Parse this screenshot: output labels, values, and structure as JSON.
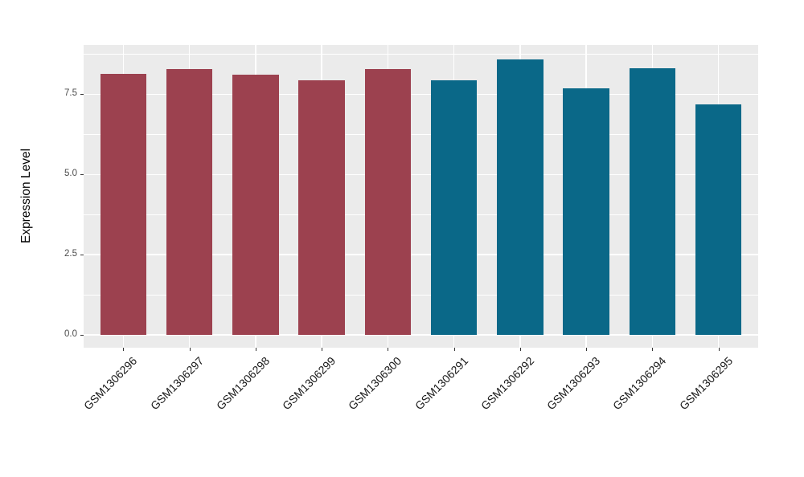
{
  "figure": {
    "background_color": "#FFFFFF",
    "panel_background_color": "#EBEBEB",
    "gridline_color": "#FFFFFF",
    "group_colors": {
      "left_group": "#9C414F",
      "right_group": "#0A6888"
    }
  },
  "chart_data": {
    "type": "bar",
    "title": "",
    "xlabel": "",
    "ylabel": "Expression Level",
    "categories": [
      "GSM1306296",
      "GSM1306297",
      "GSM1306298",
      "GSM1306299",
      "GSM1306300",
      "GSM1306291",
      "GSM1306292",
      "GSM1306293",
      "GSM1306294",
      "GSM1306295"
    ],
    "values": [
      8.14,
      8.29,
      8.1,
      7.94,
      8.29,
      7.94,
      8.59,
      7.68,
      8.31,
      7.18
    ],
    "bar_colors": [
      "#9C414F",
      "#9C414F",
      "#9C414F",
      "#9C414F",
      "#9C414F",
      "#0A6888",
      "#0A6888",
      "#0A6888",
      "#0A6888",
      "#0A6888"
    ],
    "y_axis": {
      "tick_labels": [
        "0.0",
        "2.5",
        "5.0",
        "7.5"
      ],
      "tick_values": [
        0.0,
        2.5,
        5.0,
        7.5
      ],
      "minor_tick_values": [
        1.25,
        3.75,
        6.25,
        8.75
      ],
      "ylim": [
        -0.43,
        9.03
      ]
    },
    "grid": true,
    "legend": "none"
  }
}
